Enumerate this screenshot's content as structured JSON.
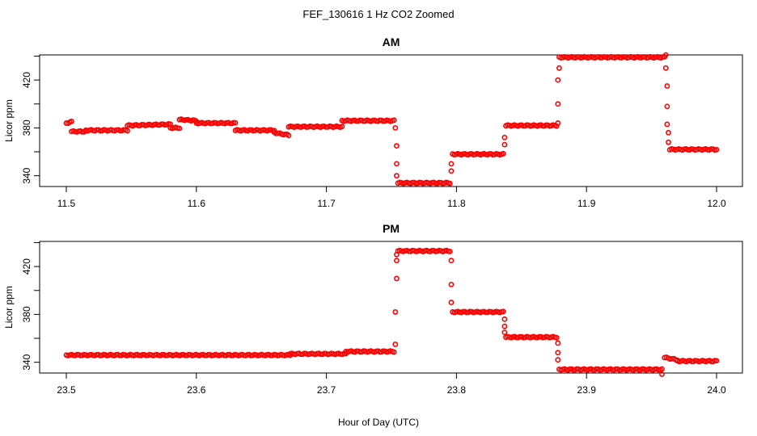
{
  "figure": {
    "title": "FEF_130616  1 Hz CO2 Zoomed",
    "xlabel": "Hour of Day (UTC)"
  },
  "chart_data": [
    {
      "type": "scatter",
      "title": "AM",
      "xlabel": "",
      "ylabel": "Licor ppm",
      "xlim": [
        11.5,
        12.0
      ],
      "ylim": [
        331,
        441
      ],
      "xticks": [
        "11.5",
        "11.6",
        "11.7",
        "11.8",
        "11.9",
        "12.0"
      ],
      "xtick_values": [
        11.5,
        11.6,
        11.7,
        11.8,
        11.9,
        12.0
      ],
      "yticks": [
        "340",
        "380",
        "420"
      ],
      "ytick_values": [
        340,
        380,
        420
      ],
      "color": "#ff0000",
      "marker": "open-circle",
      "segments": [
        {
          "x0": 11.5,
          "x1": 11.504,
          "y0": 384,
          "y1": 385
        },
        {
          "x0": 11.504,
          "x1": 11.515,
          "y0": 377,
          "y1": 377
        },
        {
          "x0": 11.515,
          "x1": 11.547,
          "y0": 378,
          "y1": 378
        },
        {
          "x0": 11.547,
          "x1": 11.58,
          "y0": 382,
          "y1": 383
        },
        {
          "x0": 11.58,
          "x1": 11.587,
          "y0": 380,
          "y1": 380
        },
        {
          "x0": 11.587,
          "x1": 11.6,
          "y0": 387,
          "y1": 386
        },
        {
          "x0": 11.6,
          "x1": 11.63,
          "y0": 384,
          "y1": 384
        },
        {
          "x0": 11.63,
          "x1": 11.66,
          "y0": 378,
          "y1": 378
        },
        {
          "x0": 11.66,
          "x1": 11.671,
          "y0": 376,
          "y1": 374
        },
        {
          "x0": 11.671,
          "x1": 11.712,
          "y0": 381,
          "y1": 381
        },
        {
          "x0": 11.712,
          "x1": 11.752,
          "y0": 386,
          "y1": 386
        },
        {
          "x0": 11.755,
          "x1": 11.795,
          "y0": 334,
          "y1": 334
        },
        {
          "x0": 11.797,
          "x1": 11.836,
          "y0": 358,
          "y1": 358
        },
        {
          "x0": 11.838,
          "x1": 11.877,
          "y0": 382,
          "y1": 382
        },
        {
          "x0": 11.879,
          "x1": 11.96,
          "y0": 439,
          "y1": 439
        },
        {
          "x0": 11.964,
          "x1": 12.0,
          "y0": 362,
          "y1": 362
        }
      ],
      "transitions": [
        {
          "x": 11.753,
          "y": 380
        },
        {
          "x": 11.754,
          "y": 365
        },
        {
          "x": 11.754,
          "y": 350
        },
        {
          "x": 11.754,
          "y": 340
        },
        {
          "x": 11.796,
          "y": 344
        },
        {
          "x": 11.796,
          "y": 350
        },
        {
          "x": 11.837,
          "y": 366
        },
        {
          "x": 11.837,
          "y": 372
        },
        {
          "x": 11.878,
          "y": 384
        },
        {
          "x": 11.878,
          "y": 400
        },
        {
          "x": 11.878,
          "y": 420
        },
        {
          "x": 11.879,
          "y": 430
        },
        {
          "x": 11.961,
          "y": 441
        },
        {
          "x": 11.961,
          "y": 430
        },
        {
          "x": 11.962,
          "y": 415
        },
        {
          "x": 11.962,
          "y": 398
        },
        {
          "x": 11.962,
          "y": 383
        },
        {
          "x": 11.963,
          "y": 376
        },
        {
          "x": 11.963,
          "y": 368
        }
      ]
    },
    {
      "type": "scatter",
      "title": "PM",
      "xlabel": "",
      "ylabel": "Licor ppm",
      "xlim": [
        23.5,
        24.0
      ],
      "ylim": [
        331,
        441
      ],
      "xticks": [
        "23.5",
        "23.6",
        "23.7",
        "23.8",
        "23.9",
        "24.0"
      ],
      "xtick_values": [
        23.5,
        23.6,
        23.7,
        23.8,
        23.9,
        24.0
      ],
      "yticks": [
        "340",
        "380",
        "420"
      ],
      "ytick_values": [
        340,
        380,
        420
      ],
      "color": "#ff0000",
      "marker": "open-circle",
      "segments": [
        {
          "x0": 23.5,
          "x1": 23.672,
          "y0": 346,
          "y1": 346
        },
        {
          "x0": 23.672,
          "x1": 23.715,
          "y0": 347,
          "y1": 347
        },
        {
          "x0": 23.715,
          "x1": 23.752,
          "y0": 349,
          "y1": 349
        },
        {
          "x0": 23.755,
          "x1": 23.795,
          "y0": 433,
          "y1": 433
        },
        {
          "x0": 23.797,
          "x1": 23.836,
          "y0": 382,
          "y1": 382
        },
        {
          "x0": 23.838,
          "x1": 23.877,
          "y0": 361,
          "y1": 361
        },
        {
          "x0": 23.879,
          "x1": 23.958,
          "y0": 334,
          "y1": 334
        },
        {
          "x0": 23.96,
          "x1": 23.97,
          "y0": 344,
          "y1": 342
        },
        {
          "x0": 23.97,
          "x1": 24.0,
          "y0": 341,
          "y1": 341
        }
      ],
      "transitions": [
        {
          "x": 23.753,
          "y": 355
        },
        {
          "x": 23.753,
          "y": 382
        },
        {
          "x": 23.754,
          "y": 410
        },
        {
          "x": 23.754,
          "y": 425
        },
        {
          "x": 23.754,
          "y": 430
        },
        {
          "x": 23.796,
          "y": 425
        },
        {
          "x": 23.796,
          "y": 405
        },
        {
          "x": 23.796,
          "y": 390
        },
        {
          "x": 23.837,
          "y": 376
        },
        {
          "x": 23.837,
          "y": 370
        },
        {
          "x": 23.837,
          "y": 365
        },
        {
          "x": 23.878,
          "y": 356
        },
        {
          "x": 23.878,
          "y": 348
        },
        {
          "x": 23.878,
          "y": 342
        },
        {
          "x": 23.958,
          "y": 330
        }
      ]
    }
  ]
}
